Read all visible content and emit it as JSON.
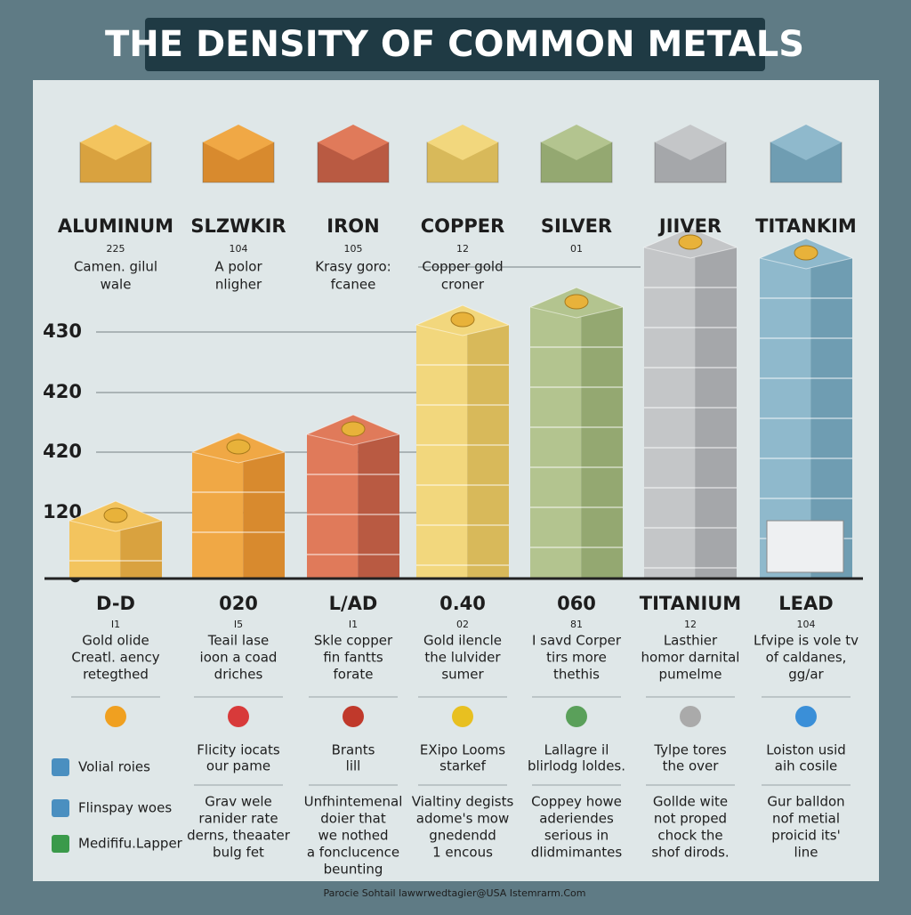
{
  "title": "THE DENSITY OF COMMON METALS",
  "y_axis_labels": [
    "430",
    "420",
    "420",
    "120",
    "0"
  ],
  "top_columns": [
    {
      "name": "ALUMINUM",
      "number": "225",
      "desc": [
        "Camen. gilul",
        "wale"
      ]
    },
    {
      "name": "SLZWKIR",
      "number": "104",
      "desc": [
        "A polor",
        "nligher"
      ]
    },
    {
      "name": "IRON",
      "number": "105",
      "desc": [
        "Krasy goro:",
        "fcanee"
      ]
    },
    {
      "name": "COPPER",
      "number": "12",
      "desc": [
        "Copper gold",
        "croner"
      ]
    },
    {
      "name": "SILVER",
      "number": "01",
      "desc": []
    },
    {
      "name": "JIIVER",
      "desc": []
    },
    {
      "name": "TITANKIM",
      "desc": []
    }
  ],
  "bottom_columns": [
    {
      "name": "D-D",
      "number": "I1",
      "desc": [
        "Gold olide",
        "Creatl. aency",
        "retegthed"
      ],
      "notes": [],
      "details": []
    },
    {
      "name": "020",
      "number": "I5",
      "desc": [
        "Teail lase",
        "ioon a coad",
        "driches"
      ],
      "notes": [
        "Flicity iocats",
        "our pame"
      ],
      "details": [
        "Grav wele",
        "ranider rate",
        "derns, theaater",
        "bulg fet"
      ]
    },
    {
      "name": "L/AD",
      "number": "I1",
      "desc": [
        "Skle copper",
        "fin fantts",
        "forate"
      ],
      "notes": [
        "Brants",
        "lill"
      ],
      "details": [
        "Unfhintemenal",
        "doier that",
        "we nothed",
        "a fonclucence",
        "beunting"
      ]
    },
    {
      "name": "0.40",
      "number": "02",
      "desc": [
        "Gold ilencle",
        "the lulvider",
        "sumer"
      ],
      "notes": [
        "EXipo Looms",
        "starkef"
      ],
      "details": [
        "Vialtiny degists",
        "adome's mow",
        "gnedendd",
        "1 encous"
      ]
    },
    {
      "name": "060",
      "number": "81",
      "desc": [
        "I savd Corper",
        "tirs more",
        "thethis"
      ],
      "notes": [
        "Lallagre il",
        "blirlodg loldes."
      ],
      "details": [
        "Coppey howe",
        "aderiendes",
        "serious in",
        "dlidmimantes"
      ]
    },
    {
      "name": "TITANIUM",
      "number": "12",
      "desc": [
        "Lasthier",
        "homor darnital",
        "pumelme"
      ],
      "notes": [
        "Tylpe tores",
        "the over"
      ],
      "details": [
        "Gollde wite",
        "not proped",
        "chock the",
        "shof dirods."
      ]
    },
    {
      "name": "LEAD",
      "number": "104",
      "desc": [
        "Lfvipe is vole tv",
        "of caldanes,",
        "gg/ar"
      ],
      "notes": [
        "Loiston usid",
        "aih cosile"
      ],
      "details": [
        "Gur balldon",
        "nof metial",
        "proicid its'",
        "line"
      ]
    }
  ],
  "legend": [
    "Volial roies",
    "Flinspay woes",
    "Medififu.Lapper"
  ],
  "footer": "Parocie Sohtail lawwrwedtagier@USA Istemrarm.Com"
}
